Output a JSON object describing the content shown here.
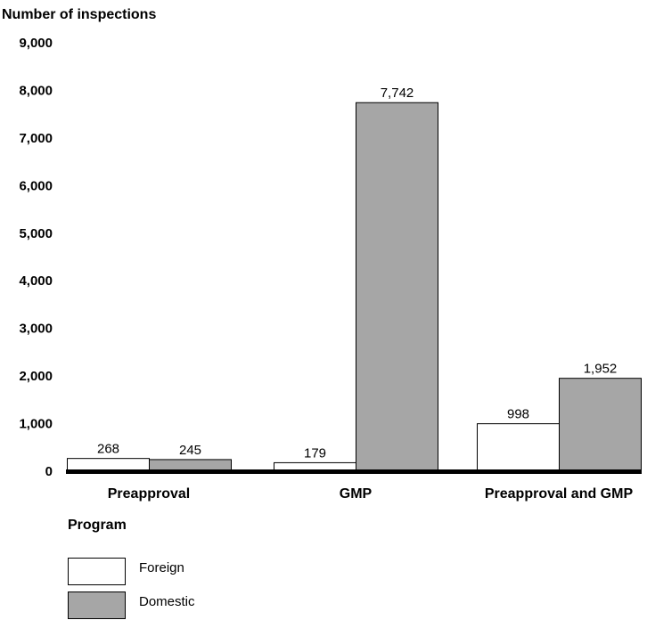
{
  "chart_data": {
    "type": "bar",
    "ylabel": "Number of inspections",
    "xlabel": "Program",
    "categories": [
      "Preapproval",
      "GMP",
      "Preapproval and GMP"
    ],
    "ylim": [
      0,
      9000
    ],
    "yticks": [
      0,
      1000,
      2000,
      3000,
      4000,
      5000,
      6000,
      7000,
      8000,
      9000
    ],
    "ytick_labels": [
      "0",
      "1,000",
      "2,000",
      "3,000",
      "4,000",
      "5,000",
      "6,000",
      "7,000",
      "8,000",
      "9,000"
    ],
    "grid": false,
    "legend_position": "bottom-left",
    "series": [
      {
        "name": "Foreign",
        "color": "#ffffff",
        "values": [
          268,
          179,
          998
        ],
        "value_labels": [
          "268",
          "179",
          "998"
        ]
      },
      {
        "name": "Domestic",
        "color": "#a6a6a6",
        "values": [
          245,
          7742,
          1952
        ],
        "value_labels": [
          "245",
          "7,742",
          "1,952"
        ]
      }
    ]
  }
}
